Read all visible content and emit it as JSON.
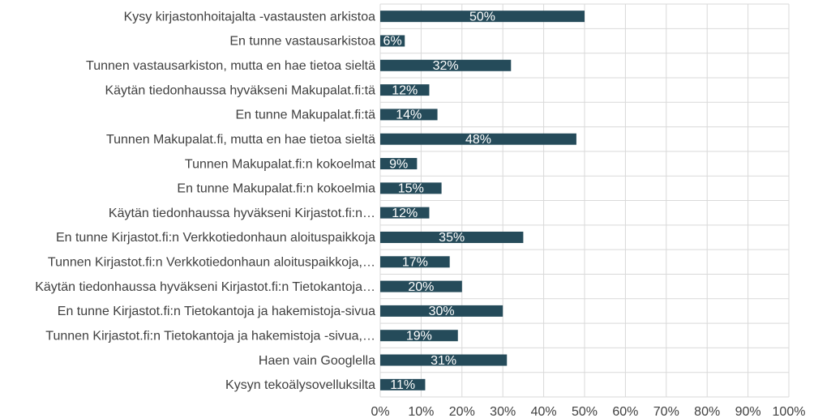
{
  "chart_data": {
    "type": "barh",
    "categories": [
      "Kysy kirjastonhoitajalta -vastausten arkistoa",
      "En tunne vastausarkistoa",
      "Tunnen vastausarkiston, mutta en hae tietoa sieltä",
      "Käytän tiedonhaussa hyväkseni Makupalat.fi:tä",
      "En tunne Makupalat.fi:tä",
      "Tunnen Makupalat.fi, mutta en hae tietoa sieltä",
      "Tunnen Makupalat.fi:n kokoelmat",
      "En tunne Makupalat.fi:n kokoelmia",
      "Käytän tiedonhaussa hyväkseni Kirjastot.fi:n…",
      "En tunne Kirjastot.fi:n Verkkotiedonhaun aloituspaikkoja",
      "Tunnen Kirjastot.fi:n Verkkotiedonhaun aloituspaikkoja,…",
      "Käytän tiedonhaussa hyväkseni Kirjastot.fi:n Tietokantoja…",
      "En tunne Kirjastot.fi:n Tietokantoja ja hakemistoja-sivua",
      "Tunnen Kirjastot.fi:n Tietokantoja ja hakemistoja -sivua,…",
      "Haen vain Googlella",
      "Kysyn tekoälysovelluksilta"
    ],
    "values": [
      50,
      6,
      32,
      12,
      14,
      48,
      9,
      15,
      12,
      35,
      17,
      20,
      30,
      19,
      31,
      11
    ],
    "value_labels": [
      "50%",
      "6%",
      "32%",
      "12%",
      "14%",
      "48%",
      "9%",
      "15%",
      "12%",
      "35%",
      "17%",
      "20%",
      "30%",
      "19%",
      "31%",
      "11%"
    ],
    "color": "#254b5a",
    "xlim": [
      0,
      100
    ],
    "xticks": [
      {
        "value": 0,
        "label": "0%"
      },
      {
        "value": 10,
        "label": "10%"
      },
      {
        "value": 20,
        "label": "20%"
      },
      {
        "value": 30,
        "label": "30%"
      },
      {
        "value": 40,
        "label": "40%"
      },
      {
        "value": 50,
        "label": "50%"
      },
      {
        "value": 60,
        "label": "60%"
      },
      {
        "value": 70,
        "label": "70%"
      },
      {
        "value": 80,
        "label": "80%"
      },
      {
        "value": 90,
        "label": "90%"
      },
      {
        "value": 100,
        "label": "100%"
      }
    ],
    "grid": true
  }
}
